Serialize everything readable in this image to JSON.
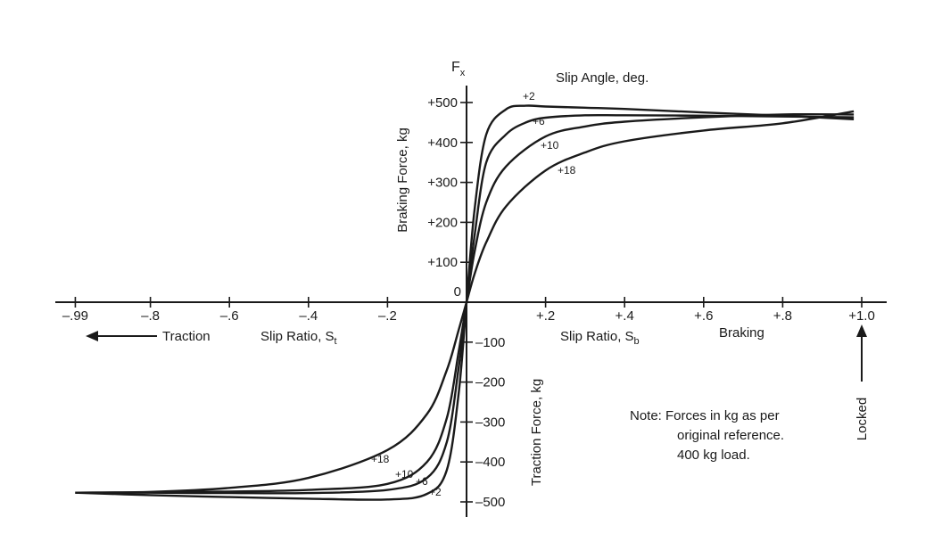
{
  "chart_data": {
    "type": "line",
    "title": "Slip Angle, deg.",
    "y_symbol": "F",
    "y_symbol_sub": "x",
    "ylabel_positive": "Braking Force, kg",
    "ylabel_negative": "Traction Force, kg",
    "xlabel_right": "Slip Ratio, S",
    "xlabel_right_sub": "b",
    "xlabel_left": "Slip Ratio, S",
    "xlabel_left_sub": "t",
    "braking_label": "Braking",
    "traction_label": "Traction",
    "locked_label": "Locked",
    "note_lines": [
      "Note: Forces in kg as per",
      "original reference.",
      "400 kg load."
    ],
    "xlim": [
      -0.99,
      1.0
    ],
    "ylim": [
      -500,
      500
    ],
    "x_ticks": [
      {
        "value": -0.99,
        "label": "–.99"
      },
      {
        "value": -0.8,
        "label": "–.8"
      },
      {
        "value": -0.6,
        "label": "–.6"
      },
      {
        "value": -0.4,
        "label": "–.4"
      },
      {
        "value": -0.2,
        "label": "–.2"
      },
      {
        "value": 0.2,
        "label": "+.2"
      },
      {
        "value": 0.4,
        "label": "+.4"
      },
      {
        "value": 0.6,
        "label": "+.6"
      },
      {
        "value": 0.8,
        "label": "+.8"
      },
      {
        "value": 1.0,
        "label": "+1.0"
      }
    ],
    "y_ticks": [
      {
        "value": 500,
        "label": "+500"
      },
      {
        "value": 400,
        "label": "+400"
      },
      {
        "value": 300,
        "label": "+300"
      },
      {
        "value": 200,
        "label": "+200"
      },
      {
        "value": 100,
        "label": "+100"
      },
      {
        "value": 0,
        "label": "0"
      },
      {
        "value": -100,
        "label": "–100"
      },
      {
        "value": -200,
        "label": "–200"
      },
      {
        "value": -300,
        "label": "–300"
      },
      {
        "value": -400,
        "label": "–400"
      },
      {
        "value": -500,
        "label": "–500"
      }
    ],
    "series": [
      {
        "name": "+2",
        "x": [
          -0.99,
          -0.8,
          -0.6,
          -0.4,
          -0.2,
          -0.1,
          -0.05,
          -0.02,
          0,
          0.02,
          0.05,
          0.1,
          0.15,
          0.2,
          0.3,
          0.4,
          0.6,
          0.8,
          0.98
        ],
        "y": [
          -477,
          -483,
          -488,
          -492,
          -494,
          -480,
          -420,
          -230,
          0,
          230,
          420,
          483,
          492,
          490,
          487,
          484,
          475,
          467,
          458
        ]
      },
      {
        "name": "+6",
        "x": [
          -0.99,
          -0.8,
          -0.6,
          -0.4,
          -0.2,
          -0.1,
          -0.05,
          -0.02,
          0,
          0.02,
          0.05,
          0.1,
          0.15,
          0.2,
          0.3,
          0.4,
          0.6,
          0.8,
          0.98
        ],
        "y": [
          -477,
          -477,
          -478,
          -478,
          -470,
          -440,
          -350,
          -165,
          0,
          165,
          350,
          420,
          450,
          462,
          468,
          468,
          467,
          465,
          463
        ]
      },
      {
        "name": "+10",
        "x": [
          -0.99,
          -0.8,
          -0.6,
          -0.4,
          -0.2,
          -0.1,
          -0.05,
          -0.02,
          0,
          0.02,
          0.05,
          0.1,
          0.2,
          0.3,
          0.4,
          0.6,
          0.8,
          0.98
        ],
        "y": [
          -477,
          -476,
          -474,
          -470,
          -455,
          -400,
          -290,
          -125,
          0,
          125,
          250,
          340,
          415,
          440,
          452,
          463,
          470,
          470
        ]
      },
      {
        "name": "+18",
        "x": [
          -0.99,
          -0.8,
          -0.6,
          -0.4,
          -0.2,
          -0.1,
          -0.05,
          -0.02,
          0,
          0.02,
          0.05,
          0.1,
          0.2,
          0.3,
          0.4,
          0.6,
          0.8,
          0.98
        ],
        "y": [
          -477,
          -475,
          -465,
          -440,
          -370,
          -280,
          -170,
          -70,
          0,
          70,
          150,
          240,
          330,
          375,
          403,
          430,
          448,
          478
        ]
      }
    ]
  }
}
